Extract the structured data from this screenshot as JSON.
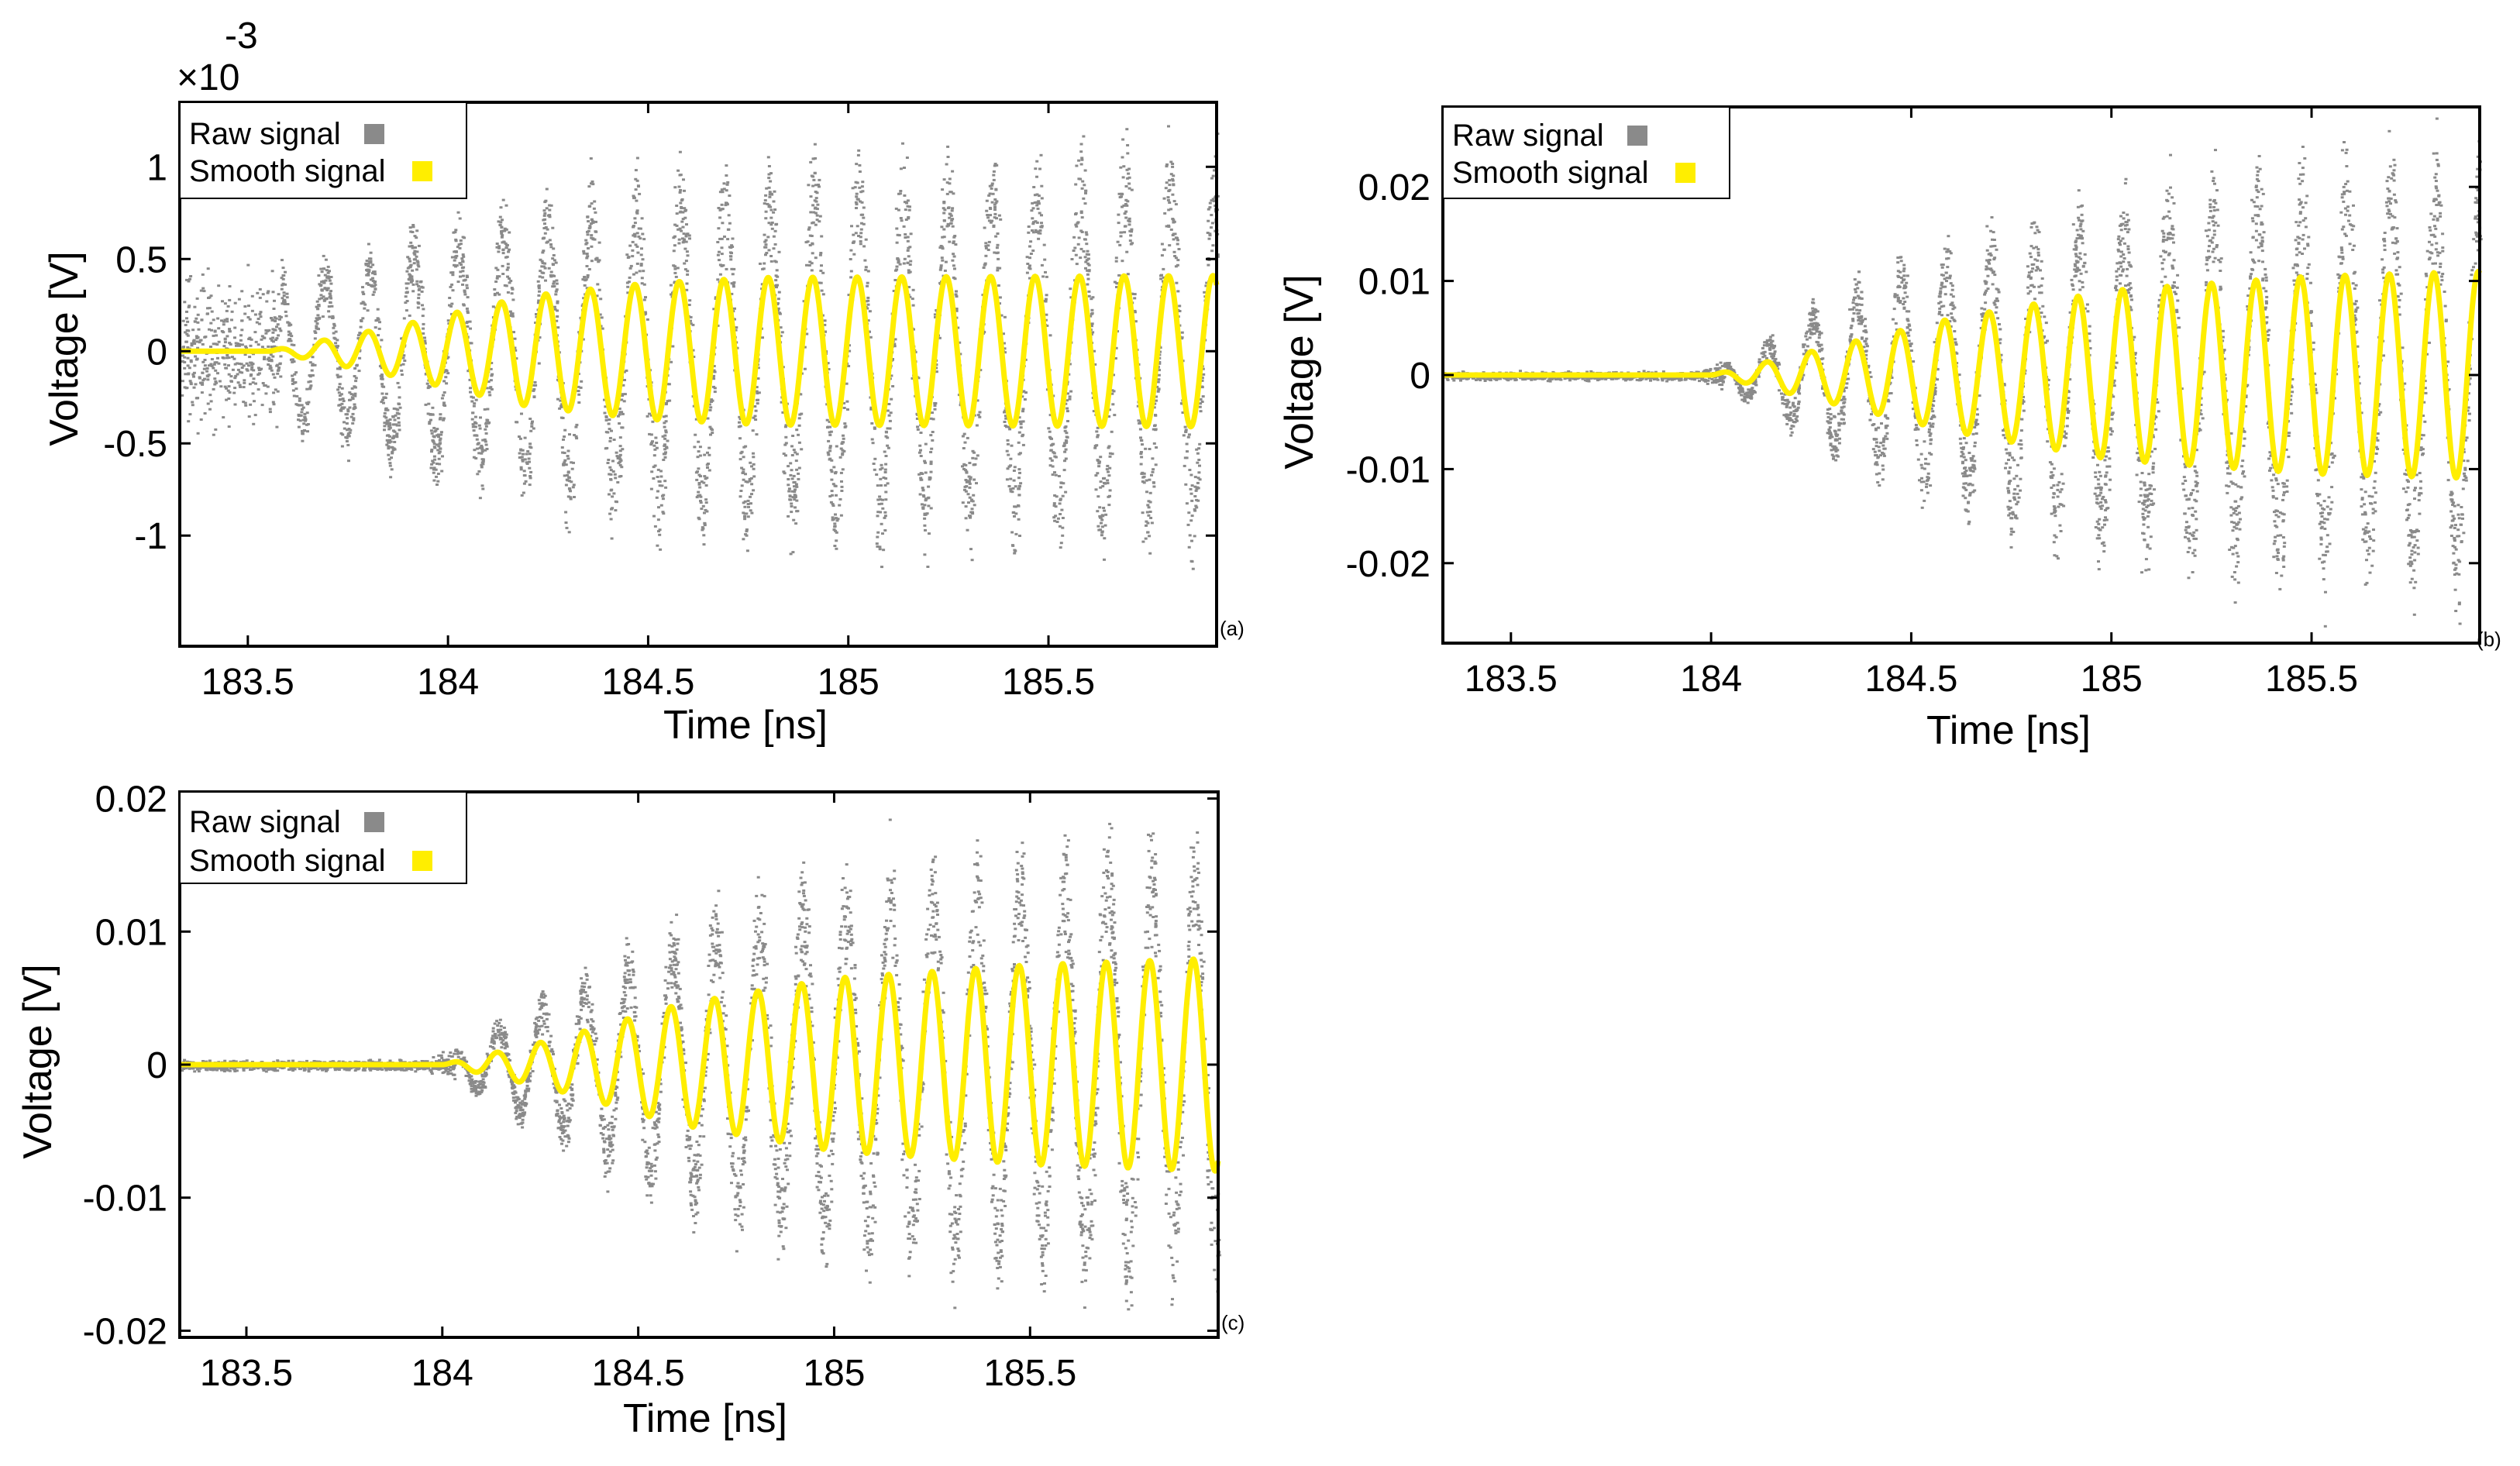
{
  "chart_data": [
    {
      "type": "scatter",
      "panel_label": "(a)",
      "title": "",
      "xlabel": "Time [ns]",
      "ylabel": "Voltage [V]",
      "exponent_label": "×10",
      "exponent_value": "-3",
      "xlim": [
        183.33,
        185.92
      ],
      "ylim": [
        -1.6,
        1.35
      ],
      "xticks": [
        183.5,
        184,
        184.5,
        185,
        185.5
      ],
      "xtick_labels": [
        "183.5",
        "184",
        "184.5",
        "185",
        "185.5"
      ],
      "yticks": [
        1,
        0.5,
        0,
        -0.5,
        -1
      ],
      "ytick_labels": [
        "1",
        "0.5",
        "0",
        "-0.5",
        "-1"
      ],
      "grid": false,
      "legend_position": "top-left",
      "series": [
        {
          "name": "Raw signal",
          "kind": "scatter",
          "color": "#8a8a8a",
          "envelope_x": [
            183.33,
            183.7,
            183.9,
            184.2,
            184.4,
            184.6,
            185.92
          ],
          "envelope_amp": [
            0.55,
            0.55,
            0.75,
            0.95,
            1.05,
            1.15,
            1.25
          ],
          "noise_floor": 0.35
        },
        {
          "name": "Smooth signal",
          "kind": "line",
          "color": "#ffee00",
          "frequency_ghz": 9.0,
          "start_time": 183.55,
          "amplitude_x": [
            183.33,
            183.55,
            183.9,
            184.2,
            184.5,
            184.8,
            185.92
          ],
          "amplitude_y": [
            0.0,
            0.0,
            0.15,
            0.3,
            0.37,
            0.4,
            0.41
          ]
        }
      ]
    },
    {
      "type": "scatter",
      "panel_label": "(b)",
      "title": "",
      "xlabel": "Time [ns]",
      "ylabel": "Voltage [V]",
      "xlim": [
        183.33,
        185.92
      ],
      "ylim": [
        -0.0285,
        0.0285
      ],
      "xticks": [
        183.5,
        184,
        184.5,
        185,
        185.5
      ],
      "xtick_labels": [
        "183.5",
        "184",
        "184.5",
        "185",
        "185.5"
      ],
      "yticks": [
        0.02,
        0.01,
        0,
        -0.01,
        -0.02
      ],
      "ytick_labels": [
        "0.02",
        "0.01",
        "0",
        "-0.01",
        "-0.02"
      ],
      "grid": false,
      "legend_position": "top-left",
      "series": [
        {
          "name": "Raw signal",
          "kind": "scatter",
          "color": "#8a8a8a",
          "envelope_x": [
            183.33,
            183.95,
            184.05,
            184.3,
            184.6,
            185.0,
            185.5,
            185.92
          ],
          "envelope_amp": [
            0.0006,
            0.0006,
            0.002,
            0.01,
            0.017,
            0.022,
            0.026,
            0.027
          ],
          "noise_floor": 0.0003
        },
        {
          "name": "Smooth signal",
          "kind": "line",
          "color": "#ffee00",
          "frequency_ghz": 9.0,
          "start_time": 184.0,
          "amplitude_x": [
            183.33,
            184.0,
            184.3,
            184.6,
            185.0,
            185.5,
            185.92
          ],
          "amplitude_y": [
            0.0,
            0.0,
            0.003,
            0.006,
            0.009,
            0.0105,
            0.011
          ]
        }
      ]
    },
    {
      "type": "scatter",
      "panel_label": "(c)",
      "title": "",
      "xlabel": "Time [ns]",
      "ylabel": "Voltage [V]",
      "xlim": [
        183.33,
        185.98
      ],
      "ylim": [
        -0.0205,
        0.0205
      ],
      "xticks": [
        183.5,
        184,
        184.5,
        185,
        185.5
      ],
      "xtick_labels": [
        "183.5",
        "184",
        "184.5",
        "185",
        "185.5"
      ],
      "yticks": [
        0.02,
        0.01,
        0,
        -0.01,
        -0.02
      ],
      "ytick_labels": [
        "0.02",
        "0.01",
        "0",
        "-0.01",
        "-0.02"
      ],
      "grid": false,
      "legend_position": "top-left",
      "series": [
        {
          "name": "Raw signal",
          "kind": "scatter",
          "color": "#8a8a8a",
          "envelope_x": [
            183.33,
            183.95,
            184.05,
            184.3,
            184.6,
            185.0,
            185.5,
            185.98
          ],
          "envelope_amp": [
            0.0005,
            0.0005,
            0.002,
            0.007,
            0.013,
            0.017,
            0.019,
            0.0205
          ],
          "noise_floor": 0.0003
        },
        {
          "name": "Smooth signal",
          "kind": "line",
          "color": "#ffee00",
          "frequency_ghz": 9.0,
          "start_time": 184.0,
          "amplitude_x": [
            183.33,
            184.0,
            184.3,
            184.6,
            185.0,
            185.5,
            185.98
          ],
          "amplitude_y": [
            0.0,
            0.0,
            0.002,
            0.0045,
            0.0065,
            0.0075,
            0.008
          ]
        }
      ]
    }
  ]
}
